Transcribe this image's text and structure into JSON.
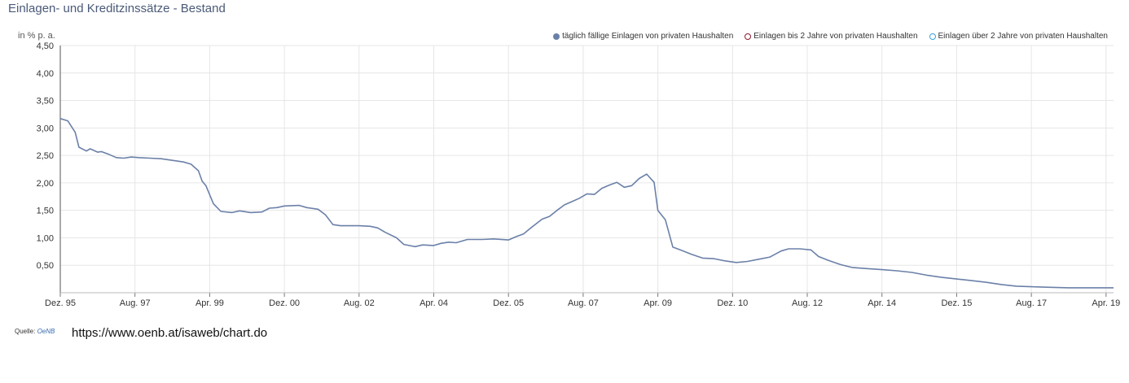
{
  "title": "Einlagen- und Kreditzinssätze - Bestand",
  "unit_label": "in % p. a.",
  "source": {
    "label": "Quelle:",
    "link_text": "OeNB",
    "url_text": "https://www.oenb.at/isaweb/chart.do"
  },
  "colors": {
    "series1": "#6b80a8",
    "series2": "#8b1a2e",
    "series3": "#3ba0d8",
    "grid": "#e6e6e6",
    "axis": "#555555"
  },
  "legend": [
    {
      "label": "täglich fällige Einlagen von privaten Haushalten",
      "style": "filled",
      "color": "#6b80a8"
    },
    {
      "label": "Einlagen bis 2 Jahre von privaten Haushalten",
      "style": "outline",
      "color": "#8b1a2e"
    },
    {
      "label": "Einlagen über 2 Jahre von privaten Haushalten",
      "style": "outline",
      "color": "#3ba0d8"
    }
  ],
  "chart_data": {
    "type": "line",
    "title": "Einlagen- und Kreditzinssätze - Bestand",
    "ylabel": "in % p. a.",
    "ylim": [
      0,
      4.5
    ],
    "yticks": [
      "0,50",
      "1,00",
      "1,50",
      "2,00",
      "2,50",
      "3,00",
      "3,50",
      "4,00",
      "4,50"
    ],
    "ytick_values": [
      0.5,
      1.0,
      1.5,
      2.0,
      2.5,
      3.0,
      3.5,
      4.0,
      4.5
    ],
    "xlim": [
      "1995-12",
      "2019-06"
    ],
    "xticks": [
      "Dez. 95",
      "Aug. 97",
      "Apr. 99",
      "Dez. 00",
      "Aug. 02",
      "Apr. 04",
      "Dez. 05",
      "Aug. 07",
      "Apr. 09",
      "Dez. 10",
      "Aug. 12",
      "Apr. 14",
      "Dez. 15",
      "Aug. 17",
      "Apr. 19"
    ],
    "xtick_dates": [
      "1995-12",
      "1997-08",
      "1999-04",
      "2000-12",
      "2002-08",
      "2004-04",
      "2005-12",
      "2007-08",
      "2009-04",
      "2010-12",
      "2012-08",
      "2014-04",
      "2015-12",
      "2017-08",
      "2019-04"
    ],
    "grid": true,
    "legend_position": "top-right",
    "series": [
      {
        "name": "täglich fällige Einlagen von privaten Haushalten",
        "color": "#6b80a8",
        "points": [
          [
            "1995-12",
            3.17
          ],
          [
            "1996-02",
            3.13
          ],
          [
            "1996-04",
            2.92
          ],
          [
            "1996-05",
            2.65
          ],
          [
            "1996-07",
            2.58
          ],
          [
            "1996-08",
            2.62
          ],
          [
            "1996-10",
            2.56
          ],
          [
            "1996-11",
            2.57
          ],
          [
            "1997-01",
            2.52
          ],
          [
            "1997-03",
            2.46
          ],
          [
            "1997-05",
            2.45
          ],
          [
            "1997-07",
            2.47
          ],
          [
            "1997-09",
            2.46
          ],
          [
            "1997-12",
            2.45
          ],
          [
            "1998-03",
            2.44
          ],
          [
            "1998-06",
            2.41
          ],
          [
            "1998-09",
            2.38
          ],
          [
            "1998-11",
            2.34
          ],
          [
            "1999-01",
            2.22
          ],
          [
            "1999-02",
            2.03
          ],
          [
            "1999-03",
            1.95
          ],
          [
            "1999-05",
            1.62
          ],
          [
            "1999-07",
            1.48
          ],
          [
            "1999-10",
            1.46
          ],
          [
            "1999-12",
            1.49
          ],
          [
            "2000-03",
            1.46
          ],
          [
            "2000-06",
            1.47
          ],
          [
            "2000-08",
            1.54
          ],
          [
            "2000-10",
            1.55
          ],
          [
            "2000-12",
            1.58
          ],
          [
            "2001-04",
            1.59
          ],
          [
            "2001-06",
            1.55
          ],
          [
            "2001-09",
            1.52
          ],
          [
            "2001-11",
            1.42
          ],
          [
            "2002-01",
            1.24
          ],
          [
            "2002-03",
            1.22
          ],
          [
            "2002-08",
            1.22
          ],
          [
            "2002-11",
            1.21
          ],
          [
            "2003-01",
            1.18
          ],
          [
            "2003-03",
            1.1
          ],
          [
            "2003-06",
            1.0
          ],
          [
            "2003-08",
            0.88
          ],
          [
            "2003-11",
            0.84
          ],
          [
            "2004-01",
            0.87
          ],
          [
            "2004-04",
            0.86
          ],
          [
            "2004-06",
            0.9
          ],
          [
            "2004-08",
            0.92
          ],
          [
            "2004-10",
            0.91
          ],
          [
            "2005-01",
            0.97
          ],
          [
            "2005-05",
            0.97
          ],
          [
            "2005-08",
            0.98
          ],
          [
            "2005-12",
            0.96
          ],
          [
            "2006-02",
            1.02
          ],
          [
            "2006-04",
            1.07
          ],
          [
            "2006-06",
            1.18
          ],
          [
            "2006-09",
            1.34
          ],
          [
            "2006-11",
            1.39
          ],
          [
            "2007-01",
            1.5
          ],
          [
            "2007-03",
            1.6
          ],
          [
            "2007-05",
            1.66
          ],
          [
            "2007-07",
            1.72
          ],
          [
            "2007-09",
            1.8
          ],
          [
            "2007-11",
            1.79
          ],
          [
            "2008-01",
            1.9
          ],
          [
            "2008-03",
            1.96
          ],
          [
            "2008-05",
            2.01
          ],
          [
            "2008-07",
            1.92
          ],
          [
            "2008-09",
            1.95
          ],
          [
            "2008-11",
            2.08
          ],
          [
            "2009-01",
            2.16
          ],
          [
            "2009-03",
            2.01
          ],
          [
            "2009-04",
            1.5
          ],
          [
            "2009-06",
            1.33
          ],
          [
            "2009-08",
            0.83
          ],
          [
            "2009-10",
            0.78
          ],
          [
            "2010-01",
            0.7
          ],
          [
            "2010-04",
            0.63
          ],
          [
            "2010-07",
            0.62
          ],
          [
            "2010-10",
            0.58
          ],
          [
            "2011-01",
            0.55
          ],
          [
            "2011-04",
            0.57
          ],
          [
            "2011-07",
            0.61
          ],
          [
            "2011-10",
            0.65
          ],
          [
            "2012-01",
            0.76
          ],
          [
            "2012-03",
            0.8
          ],
          [
            "2012-06",
            0.8
          ],
          [
            "2012-09",
            0.78
          ],
          [
            "2012-11",
            0.66
          ],
          [
            "2013-02",
            0.58
          ],
          [
            "2013-05",
            0.51
          ],
          [
            "2013-08",
            0.46
          ],
          [
            "2013-12",
            0.44
          ],
          [
            "2014-04",
            0.42
          ],
          [
            "2014-08",
            0.4
          ],
          [
            "2014-12",
            0.37
          ],
          [
            "2015-04",
            0.32
          ],
          [
            "2015-08",
            0.28
          ],
          [
            "2015-12",
            0.25
          ],
          [
            "2016-04",
            0.22
          ],
          [
            "2016-08",
            0.19
          ],
          [
            "2016-12",
            0.15
          ],
          [
            "2017-04",
            0.12
          ],
          [
            "2017-08",
            0.11
          ],
          [
            "2017-12",
            0.1
          ],
          [
            "2018-06",
            0.09
          ],
          [
            "2018-12",
            0.09
          ],
          [
            "2019-06",
            0.09
          ]
        ]
      }
    ]
  }
}
